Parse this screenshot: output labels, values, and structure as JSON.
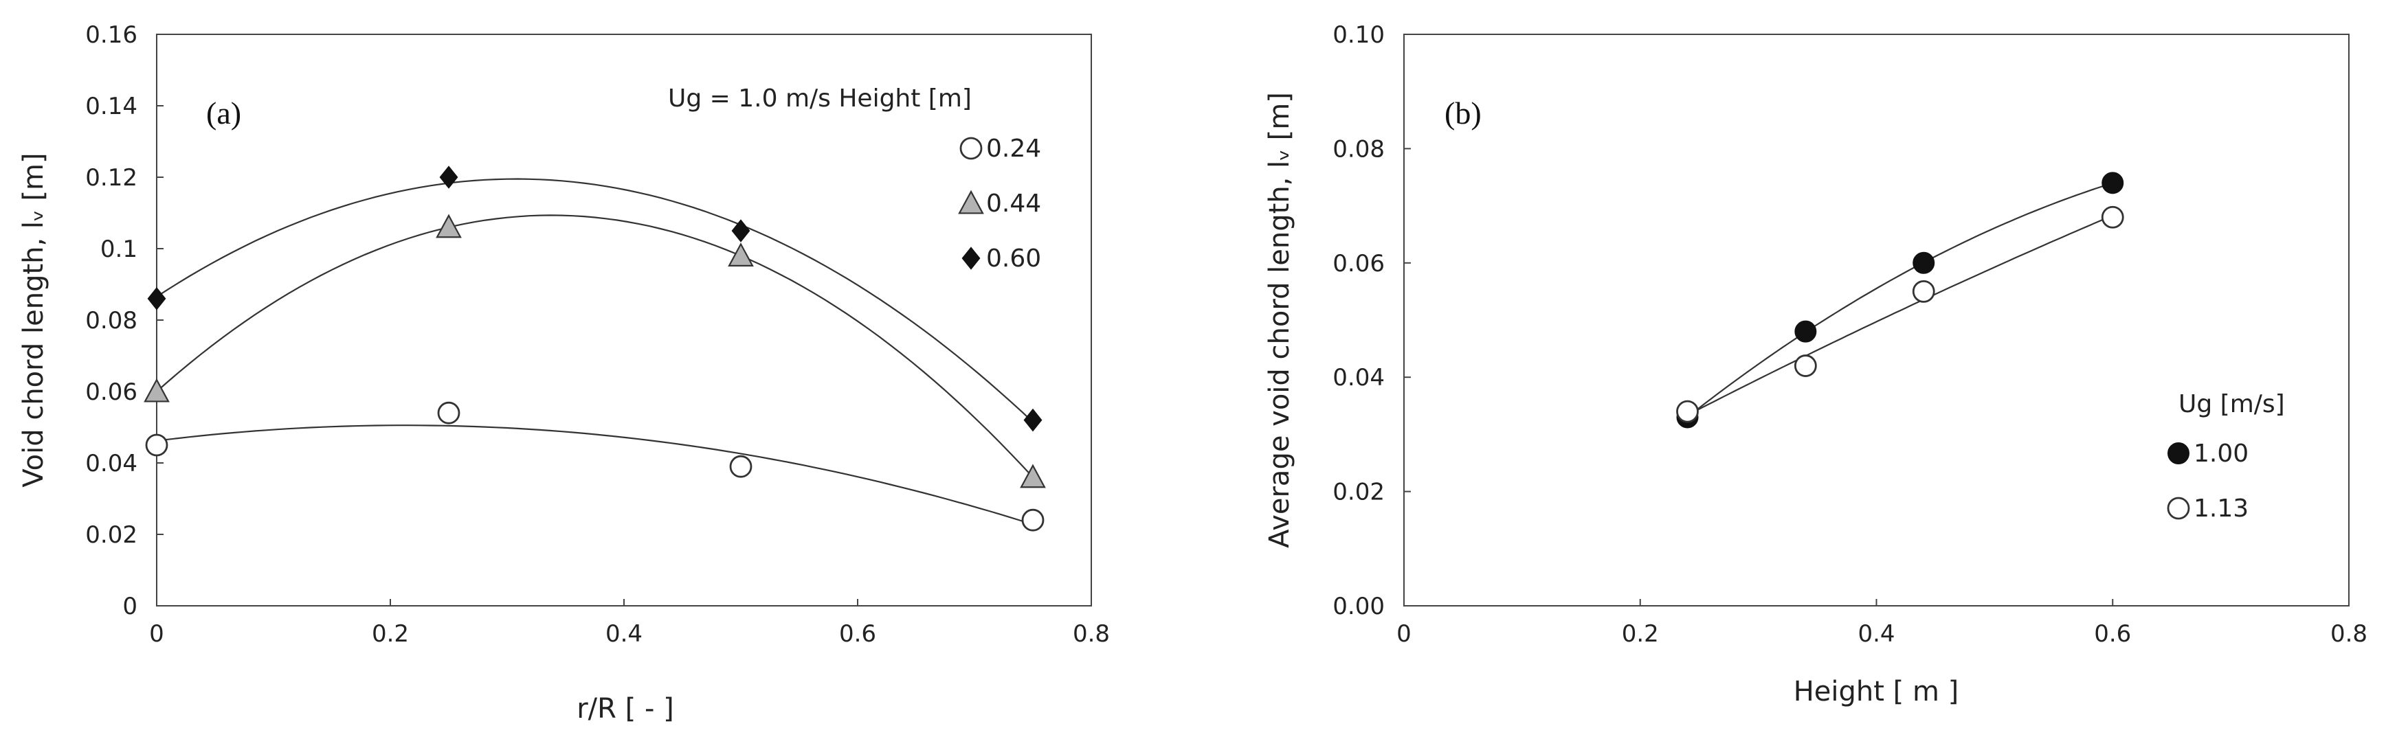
{
  "chart_data": [
    {
      "type": "scatter",
      "panel_label": "(a)",
      "xlabel": "r/R [ - ]",
      "ylabel": "Void chord length, lᵥ [m]",
      "xlim": [
        0,
        0.8
      ],
      "ylim": [
        0,
        0.16
      ],
      "xticks": [
        "0",
        "0.2",
        "0.4",
        "0.6",
        "0.8"
      ],
      "yticks": [
        "0",
        "0.02",
        "0.04",
        "0.06",
        "0.08",
        "0.1",
        "0.12",
        "0.14",
        "0.16"
      ],
      "legend_title": "Ug  = 1.0 m/s  Height [m]",
      "legend_position": "top-right",
      "x": [
        0,
        0.25,
        0.5,
        0.75
      ],
      "series": [
        {
          "name": "0.24",
          "marker": "circle-open",
          "values": [
            0.045,
            0.054,
            0.039,
            0.024
          ]
        },
        {
          "name": "0.44",
          "marker": "triangle-gray",
          "values": [
            0.06,
            0.106,
            0.098,
            0.036
          ]
        },
        {
          "name": "0.60",
          "marker": "diamond-filled",
          "values": [
            0.086,
            0.12,
            0.105,
            0.052
          ]
        }
      ],
      "trendline": "polynomial fit per series"
    },
    {
      "type": "scatter",
      "panel_label": "(b)",
      "xlabel": "Height [ m ]",
      "ylabel": "Average void chord length, lᵥ [m]",
      "xlim": [
        0,
        0.8
      ],
      "ylim": [
        0,
        0.1
      ],
      "xticks": [
        "0",
        "0.2",
        "0.4",
        "0.6",
        "0.8"
      ],
      "yticks": [
        "0.00",
        "0.02",
        "0.04",
        "0.06",
        "0.08",
        "0.10"
      ],
      "legend_title": "Ug [m/s]",
      "legend_position": "lower-right",
      "x": [
        0.24,
        0.34,
        0.44,
        0.6
      ],
      "series": [
        {
          "name": "1.00",
          "marker": "circle-filled",
          "values": [
            0.033,
            0.048,
            0.06,
            0.074
          ]
        },
        {
          "name": "1.13",
          "marker": "circle-open",
          "values": [
            0.034,
            0.042,
            0.055,
            0.068
          ]
        }
      ],
      "trendline": "polynomial fit per series"
    }
  ]
}
